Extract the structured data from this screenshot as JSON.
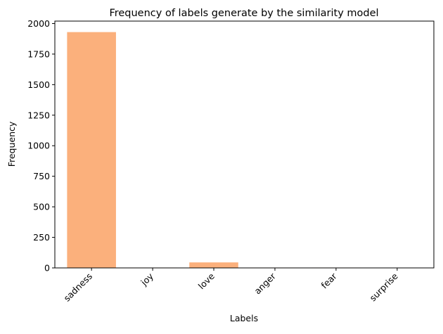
{
  "chart_data": {
    "type": "bar",
    "title": "Frequency of labels generate by the similarity model",
    "xlabel": "Labels",
    "ylabel": "Frequency",
    "categories": [
      "sadness",
      "joy",
      "love",
      "anger",
      "fear",
      "surprise"
    ],
    "values": [
      1930,
      3,
      45,
      3,
      3,
      1
    ],
    "ylim": [
      0,
      2020
    ],
    "yticks": [
      0,
      250,
      500,
      750,
      1000,
      1250,
      1500,
      1750,
      2000
    ],
    "x_tick_rotation_deg": 45,
    "grid": false,
    "legend": "none",
    "bar_color": "#fbb07c"
  }
}
